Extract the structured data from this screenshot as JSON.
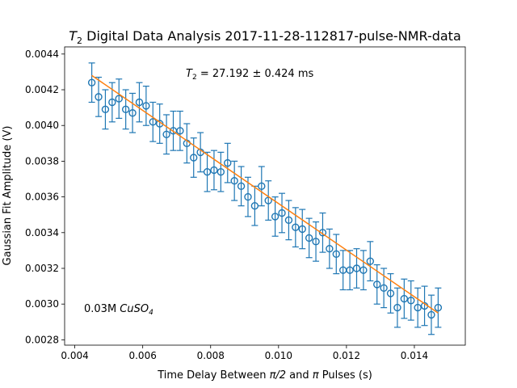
{
  "chart_data": {
    "type": "scatter",
    "title_symbol": "T",
    "title_sub": "2",
    "title_rest": " Digital Data Analysis 2017-11-28-112817-pulse-NMR-data",
    "xlabel_pre": "Time Delay Between ",
    "xlabel_pi2": "π/2",
    "xlabel_mid": " and ",
    "xlabel_pi": "π",
    "xlabel_post": " Pulses (s)",
    "ylabel": "Gaussian Fit Amplitude (V)",
    "annotation_t2_symbol": "T",
    "annotation_t2_sub": "2",
    "annotation_t2_value": " = 27.192 ± 0.424 ms",
    "annotation_sample_conc": "0.03M ",
    "annotation_sample_formula": "CuSO",
    "annotation_sample_formula_sub": "4",
    "xlim": [
      0.0037,
      0.0155
    ],
    "ylim": [
      0.00277,
      0.00444
    ],
    "xticks": [
      0.004,
      0.006,
      0.008,
      0.01,
      0.012,
      0.014
    ],
    "xtick_labels": [
      "0.004",
      "0.006",
      "0.008",
      "0.010",
      "0.012",
      "0.014"
    ],
    "yticks": [
      0.0028,
      0.003,
      0.0032,
      0.0034,
      0.0036,
      0.0038,
      0.004,
      0.0042,
      0.0044
    ],
    "ytick_labels": [
      "0.0028",
      "0.0030",
      "0.0032",
      "0.0034",
      "0.0036",
      "0.0038",
      "0.0040",
      "0.0042",
      "0.0044"
    ],
    "grid": false,
    "colors": {
      "data": "#1f77b4",
      "fit": "#ff7f0e"
    },
    "yerr": 0.00011,
    "x": [
      0.0045,
      0.0047,
      0.0049,
      0.0051,
      0.0053,
      0.0055,
      0.0057,
      0.0059,
      0.0061,
      0.0063,
      0.0065,
      0.0067,
      0.0069,
      0.0071,
      0.0073,
      0.0075,
      0.0077,
      0.0079,
      0.0081,
      0.0083,
      0.0085,
      0.0087,
      0.0089,
      0.0091,
      0.0093,
      0.0095,
      0.0097,
      0.0099,
      0.0101,
      0.0103,
      0.0105,
      0.0107,
      0.0109,
      0.0111,
      0.0113,
      0.0115,
      0.0117,
      0.0119,
      0.0121,
      0.0123,
      0.0125,
      0.0127,
      0.0129,
      0.0131,
      0.0133,
      0.0135,
      0.0137,
      0.0139,
      0.0141,
      0.0143,
      0.0145,
      0.0147
    ],
    "y": [
      0.00424,
      0.00416,
      0.00409,
      0.00413,
      0.00415,
      0.00409,
      0.00407,
      0.00413,
      0.00411,
      0.00402,
      0.00401,
      0.00395,
      0.00397,
      0.00397,
      0.0039,
      0.00382,
      0.00385,
      0.00374,
      0.00375,
      0.00374,
      0.00379,
      0.00369,
      0.00366,
      0.0036,
      0.00355,
      0.00366,
      0.00358,
      0.00349,
      0.00351,
      0.00347,
      0.00343,
      0.00342,
      0.00337,
      0.00335,
      0.0034,
      0.00331,
      0.00328,
      0.00319,
      0.00319,
      0.0032,
      0.00319,
      0.00324,
      0.00311,
      0.00309,
      0.00306,
      0.00298,
      0.00303,
      0.00302,
      0.00298,
      0.00299,
      0.00294,
      0.00298
    ],
    "fit": {
      "x": [
        0.0045,
        0.0147
      ],
      "y": [
        0.00428,
        0.00295
      ]
    }
  }
}
